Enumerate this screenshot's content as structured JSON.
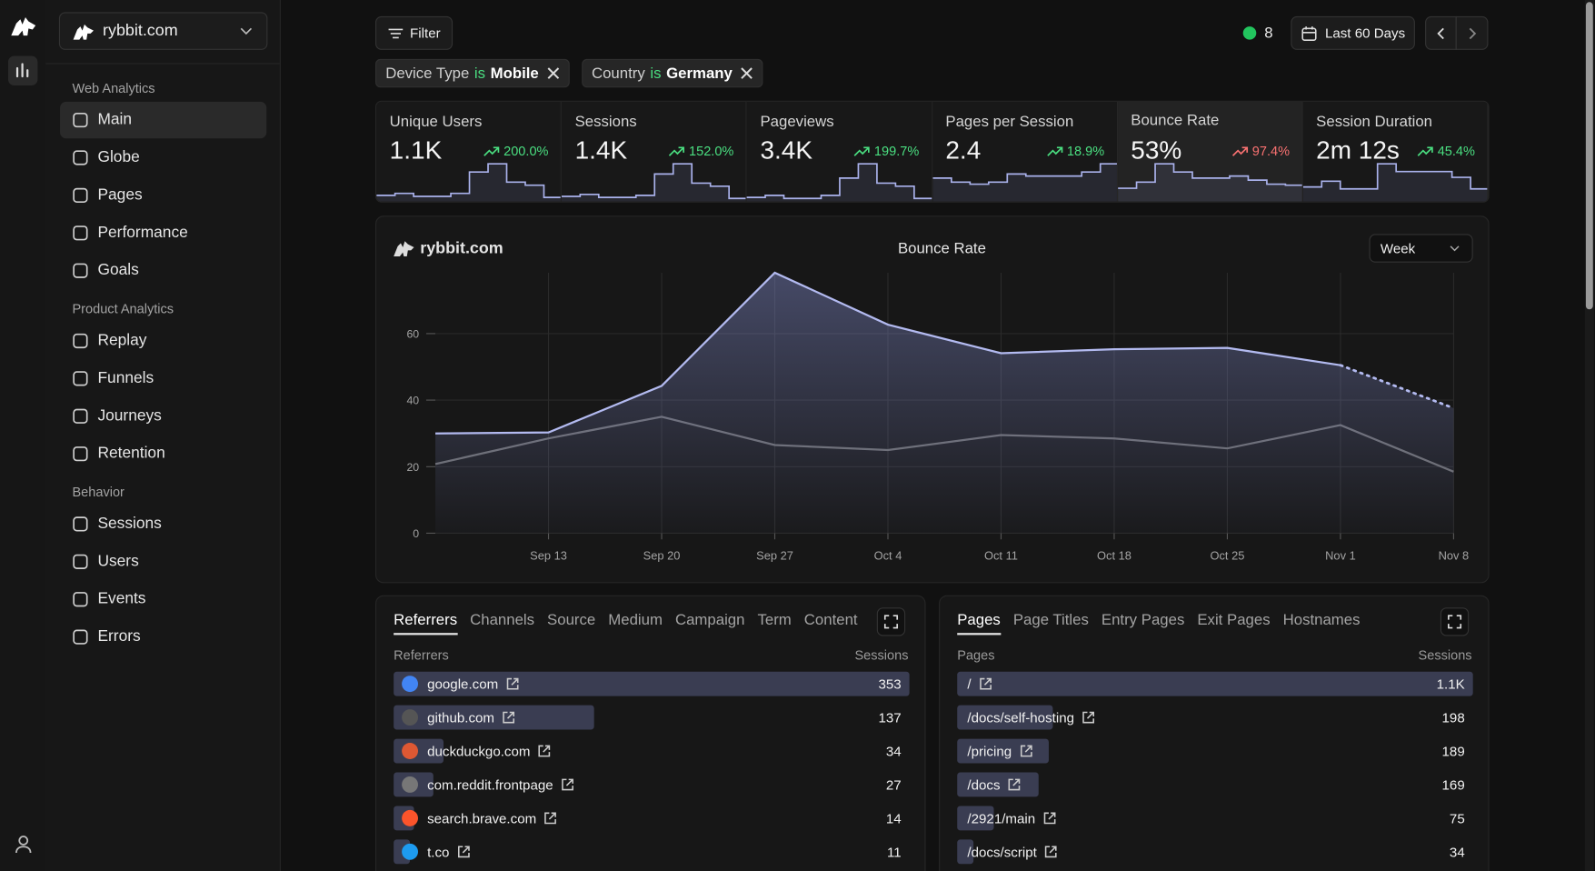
{
  "sidebar": {
    "site": "rybbit.com",
    "active": "Main",
    "sections": [
      {
        "title": "Web Analytics",
        "items": [
          "Main",
          "Globe",
          "Pages",
          "Performance",
          "Goals"
        ]
      },
      {
        "title": "Product Analytics",
        "items": [
          "Replay",
          "Funnels",
          "Journeys",
          "Retention"
        ]
      },
      {
        "title": "Behavior",
        "items": [
          "Sessions",
          "Users",
          "Events",
          "Errors"
        ]
      }
    ]
  },
  "toolbar": {
    "filter": "Filter",
    "live_count": 8,
    "date_range": "Last 60 Days"
  },
  "filters": [
    {
      "field": "Device Type",
      "op": "is",
      "value": "Mobile"
    },
    {
      "field": "Country",
      "op": "is",
      "value": "Germany"
    }
  ],
  "metrics": [
    {
      "label": "Unique Users",
      "value": "1.1K",
      "change": "200.0%",
      "color": "#4ade80",
      "sparkline": [
        5,
        7,
        4,
        4,
        7,
        28,
        36,
        18,
        15,
        3
      ]
    },
    {
      "label": "Sessions",
      "value": "1.4K",
      "change": "152.0%",
      "color": "#4ade80",
      "sparkline": [
        4,
        6,
        3,
        3,
        5,
        26,
        36,
        17,
        14,
        2
      ]
    },
    {
      "label": "Pageviews",
      "value": "3.4K",
      "change": "199.7%",
      "color": "#4ade80",
      "sparkline": [
        3,
        5,
        2,
        2,
        5,
        22,
        36,
        17,
        14,
        2
      ]
    },
    {
      "label": "Pages per Session",
      "value": "2.4",
      "change": "18.9%",
      "color": "#4ade80",
      "sparkline": [
        22,
        18,
        16,
        18,
        26,
        24,
        24,
        24,
        28,
        36
      ]
    },
    {
      "label": "Bounce Rate",
      "value": "53%",
      "change": "97.4%",
      "color": "#f87171",
      "selected": true,
      "sparkline": [
        12,
        18,
        36,
        28,
        22,
        22,
        24,
        20,
        16,
        15
      ]
    },
    {
      "label": "Session Duration",
      "value": "2m 12s",
      "change": "45.4%",
      "color": "#4ade80",
      "sparkline": [
        14,
        20,
        12,
        12,
        38,
        30,
        30,
        30,
        24,
        12
      ]
    }
  ],
  "chart": {
    "type": "line",
    "site": "rybbit.com",
    "title": "Bounce Rate",
    "interval": "Week",
    "categories": [
      null,
      "Sep 13",
      "Sep 20",
      "Sep 27",
      "Oct 4",
      "Oct 11",
      "Oct 18",
      "Oct 25",
      "Nov 1",
      "Nov 8"
    ],
    "series": [
      {
        "color": "#b3baf0",
        "fill": true,
        "dotted_last": true,
        "values": [
          30,
          30.3,
          44.3,
          78.3,
          62.7,
          54.1,
          55.3,
          55.7,
          50.5,
          37.6
        ]
      },
      {
        "color": "#6b6b6b",
        "values": [
          20.8,
          28.5,
          35,
          26.5,
          25,
          29.5,
          28.5,
          25.5,
          32.5,
          18.5
        ]
      }
    ],
    "ylim": [
      0,
      78.3
    ],
    "yticks": [
      0,
      20,
      40,
      60
    ],
    "grid": true
  },
  "referrers": {
    "tabs": [
      "Referrers",
      "Channels",
      "Source",
      "Medium",
      "Campaign",
      "Term",
      "Content"
    ],
    "active_tab": 0,
    "column_name": "Referrers",
    "column_value": "Sessions",
    "rows": [
      {
        "name": "google.com",
        "value": 353
      },
      {
        "name": "github.com",
        "value": 137
      },
      {
        "name": "duckduckgo.com",
        "value": 34
      },
      {
        "name": "com.reddit.frontpage",
        "value": 27
      },
      {
        "name": "search.brave.com",
        "value": 14
      },
      {
        "name": "t.co",
        "value": 11
      }
    ]
  },
  "pages": {
    "tabs": [
      "Pages",
      "Page Titles",
      "Entry Pages",
      "Exit Pages",
      "Hostnames"
    ],
    "active_tab": 0,
    "column_name": "Pages",
    "column_value": "Sessions",
    "rows": [
      {
        "name": "/",
        "value": 1070,
        "value_label": "1.1K"
      },
      {
        "name": "/docs/self-hosting",
        "value": 198
      },
      {
        "name": "/pricing",
        "value": 189
      },
      {
        "name": "/docs",
        "value": 169
      },
      {
        "name": "/2921/main",
        "value": 75
      },
      {
        "name": "/docs/script",
        "value": 34
      }
    ]
  }
}
